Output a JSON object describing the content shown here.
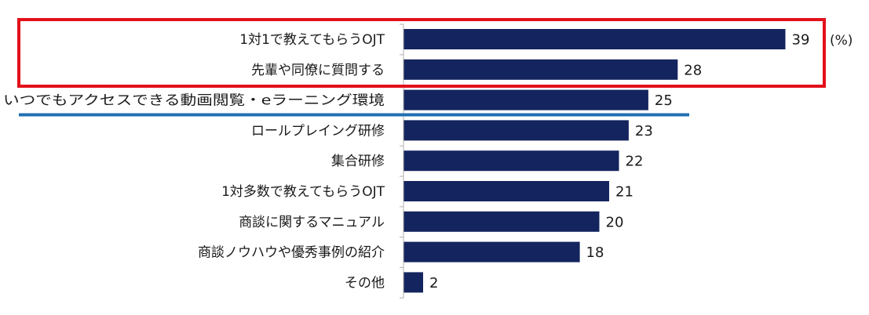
{
  "chart_data": {
    "type": "bar",
    "orientation": "horizontal",
    "categories": [
      "1対1で教えてもらうOJT",
      "先輩や同僚に質問する",
      "いつでもアクセスできる動画閲覧・eラーニング環境",
      "ロールプレイング研修",
      "集合研修",
      "1対多数で教えてもらうOJT",
      "商談に関するマニュアル",
      "商談ノウハウや優秀事例の紹介",
      "その他"
    ],
    "values": [
      39,
      28,
      25,
      23,
      22,
      21,
      20,
      18,
      2
    ],
    "unit": "(%)",
    "xlim": [
      0,
      40
    ],
    "grid": false,
    "legend": "none"
  },
  "colors": {
    "bar": "#14245e",
    "highlight_box": "#e3101a",
    "underline": "#1f6fb5",
    "axis": "#b0b0b0"
  }
}
